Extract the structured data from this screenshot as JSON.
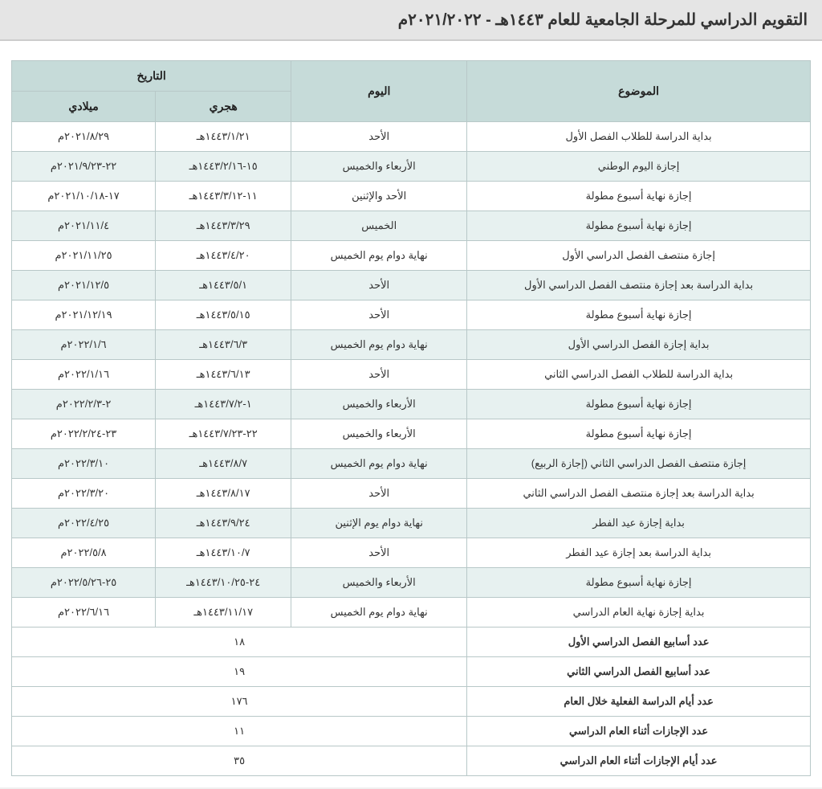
{
  "title": "التقويم الدراسي للمرحلة الجامعية للعام ١٤٤٣هـ - ٢٠٢١/٢٠٢٢م",
  "headers": {
    "subject": "الموضوع",
    "day": "اليوم",
    "date": "التاريخ",
    "hijri": "هجري",
    "gregorian": "ميلادي"
  },
  "rows": [
    {
      "subject": "بداية الدراسة للطلاب الفصل الأول",
      "day": "الأحد",
      "hijri": "١٤٤٣/١/٢١هـ",
      "greg": "٢٠٢١/٨/٢٩م"
    },
    {
      "subject": "إجازة اليوم الوطني",
      "day": "الأربعاء والخميس",
      "hijri": "١٥-١٤٤٣/٢/١٦هـ",
      "greg": "٢٢-٢٠٢١/٩/٢٣م"
    },
    {
      "subject": "إجازة نهاية أسبوع مطولة",
      "day": "الأحد والإثنين",
      "hijri": "١١-١٤٤٣/٣/١٢هـ",
      "greg": "١٧-٢٠٢١/١٠/١٨م"
    },
    {
      "subject": "إجازة نهاية أسبوع مطولة",
      "day": "الخميس",
      "hijri": "١٤٤٣/٣/٢٩هـ",
      "greg": "٢٠٢١/١١/٤م"
    },
    {
      "subject": "إجازة منتصف الفصل الدراسي الأول",
      "day": "نهاية دوام  يوم الخميس",
      "hijri": "١٤٤٣/٤/٢٠هـ",
      "greg": "٢٠٢١/١١/٢٥م"
    },
    {
      "subject": "بداية الدراسة بعد إجازة منتصف الفصل الدراسي الأول",
      "day": "الأحد",
      "hijri": "١٤٤٣/٥/١هـ",
      "greg": "٢٠٢١/١٢/٥م"
    },
    {
      "subject": "إجازة نهاية أسبوع مطولة",
      "day": "الأحد",
      "hijri": "١٤٤٣/٥/١٥هـ",
      "greg": "٢٠٢١/١٢/١٩م"
    },
    {
      "subject": "بداية إجازة الفصل الدراسي الأول",
      "day": "نهاية دوام  يوم الخميس",
      "hijri": "١٤٤٣/٦/٣هـ",
      "greg": "٢٠٢٢/١/٦م"
    },
    {
      "subject": "بداية الدراسة للطلاب الفصل الدراسي الثاني",
      "day": "الأحد",
      "hijri": "١٤٤٣/٦/١٣هـ",
      "greg": "٢٠٢٢/١/١٦م"
    },
    {
      "subject": "إجازة نهاية أسبوع مطولة",
      "day": "الأربعاء والخميس",
      "hijri": "١-١٤٤٣/٧/٢هـ",
      "greg": "٢-٢٠٢٢/٢/٣م"
    },
    {
      "subject": "إجازة نهاية أسبوع مطولة",
      "day": "الأربعاء والخميس",
      "hijri": "٢٢-١٤٤٣/٧/٢٣هـ",
      "greg": "٢٣-٢٠٢٢/٢/٢٤م"
    },
    {
      "subject": "إجازة منتصف الفصل الدراسي الثاني (إجازة الربيع)",
      "day": "نهاية دوام يوم الخميس",
      "hijri": "١٤٤٣/٨/٧هـ",
      "greg": "٢٠٢٢/٣/١٠م"
    },
    {
      "subject": "بداية الدراسة بعد إجازة منتصف الفصل الدراسي الثاني",
      "day": "الأحد",
      "hijri": "١٤٤٣/٨/١٧هـ",
      "greg": "٢٠٢٢/٣/٢٠م"
    },
    {
      "subject": "بداية إجازة عيد الفطر",
      "day": "نهاية دوام  يوم الإثنين",
      "hijri": "١٤٤٣/٩/٢٤هـ",
      "greg": "٢٠٢٢/٤/٢٥م"
    },
    {
      "subject": "بداية الدراسة بعد إجازة عيد الفطر",
      "day": "الأحد",
      "hijri": "١٤٤٣/١٠/٧هـ",
      "greg": "٢٠٢٢/٥/٨م"
    },
    {
      "subject": "إجازة نهاية أسبوع مطولة",
      "day": "الأربعاء والخميس",
      "hijri": "٢٤-١٤٤٣/١٠/٢٥هـ",
      "greg": "٢٥-٢٠٢٢/٥/٢٦م"
    },
    {
      "subject": "بداية إجازة نهاية العام الدراسي",
      "day": "نهاية دوام يوم الخميس",
      "hijri": "١٤٤٣/١١/١٧هـ",
      "greg": "٢٠٢٢/٦/١٦م"
    }
  ],
  "summary": [
    {
      "label": "عدد أسابيع الفصل الدراسي الأول",
      "value": "١٨"
    },
    {
      "label": "عدد أسابيع الفصل الدراسي الثاني",
      "value": "١٩"
    },
    {
      "label": "عدد أيام الدراسة الفعلية خلال العام",
      "value": "١٧٦"
    },
    {
      "label": "عدد الإجازات أثناء العام الدراسي",
      "value": "١١"
    },
    {
      "label": "عدد أيام الإجازات أثناء العام الدراسي",
      "value": "٣٥"
    }
  ],
  "colors": {
    "header_bg": "#c6dbd9",
    "row_alt_bg": "#e7f1f0",
    "border": "#b8c8c8",
    "title_bg": "#e5e5e5",
    "page_bg": "#ffffff"
  }
}
